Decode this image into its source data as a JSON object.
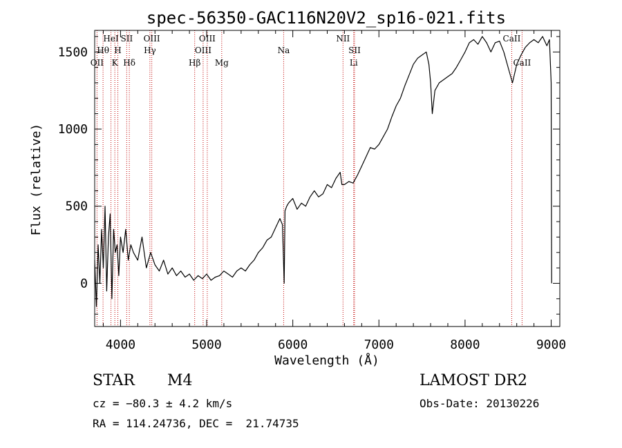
{
  "chart_data": {
    "type": "line",
    "title": "spec-56350-GAC116N20V2_sp16-021.fits",
    "xlabel": "Wavelength (Å)",
    "ylabel": "Flux (relative)",
    "xlim": [
      3700,
      9100
    ],
    "ylim": [
      -280,
      1640
    ],
    "xticks": [
      4000,
      5000,
      6000,
      7000,
      8000,
      9000
    ],
    "yticks": [
      0,
      500,
      1000,
      1500
    ],
    "series": [
      {
        "x": [
          3700,
          3720,
          3740,
          3760,
          3780,
          3800,
          3820,
          3840,
          3860,
          3880,
          3900,
          3920,
          3940,
          3960,
          3980,
          4000,
          4030,
          4060,
          4090,
          4120,
          4150,
          4200,
          4250,
          4300,
          4350,
          4400,
          4450,
          4500,
          4550,
          4600,
          4650,
          4700,
          4750,
          4800,
          4850,
          4900,
          4950,
          5000,
          5050,
          5100,
          5150,
          5200,
          5250,
          5300,
          5350,
          5400,
          5450,
          5500,
          5550,
          5600,
          5650,
          5700,
          5750,
          5800,
          5850,
          5880,
          5900,
          5910,
          5930,
          5950,
          6000,
          6050,
          6100,
          6150,
          6200,
          6250,
          6300,
          6350,
          6400,
          6450,
          6500,
          6550,
          6570,
          6600,
          6650,
          6700,
          6750,
          6800,
          6850,
          6900,
          6950,
          7000,
          7050,
          7100,
          7150,
          7200,
          7250,
          7300,
          7350,
          7400,
          7450,
          7500,
          7550,
          7580,
          7600,
          7620,
          7650,
          7700,
          7750,
          7800,
          7850,
          7900,
          7950,
          8000,
          8050,
          8100,
          8150,
          8200,
          8250,
          8300,
          8350,
          8400,
          8450,
          8500,
          8550,
          8600,
          8650,
          8700,
          8750,
          8800,
          8850,
          8900,
          8950,
          8980,
          9000,
          9005
        ],
        "y": [
          150,
          -150,
          250,
          0,
          350,
          100,
          500,
          -50,
          300,
          450,
          -100,
          350,
          200,
          250,
          50,
          300,
          200,
          350,
          150,
          250,
          200,
          150,
          300,
          100,
          200,
          120,
          80,
          150,
          60,
          100,
          50,
          80,
          40,
          60,
          20,
          50,
          30,
          60,
          20,
          40,
          50,
          80,
          60,
          40,
          80,
          100,
          80,
          120,
          150,
          200,
          230,
          280,
          300,
          360,
          420,
          380,
          0,
          470,
          500,
          520,
          550,
          480,
          520,
          500,
          560,
          600,
          560,
          580,
          640,
          620,
          680,
          720,
          640,
          640,
          660,
          650,
          700,
          760,
          820,
          880,
          870,
          900,
          950,
          1000,
          1080,
          1150,
          1200,
          1280,
          1350,
          1420,
          1460,
          1480,
          1500,
          1420,
          1300,
          1100,
          1250,
          1300,
          1320,
          1340,
          1360,
          1400,
          1450,
          1500,
          1560,
          1580,
          1550,
          1600,
          1560,
          1500,
          1560,
          1570,
          1500,
          1400,
          1300,
          1420,
          1480,
          1530,
          1560,
          1580,
          1560,
          1600,
          1540,
          1580,
          1300,
          0
        ]
      }
    ],
    "lines": [
      {
        "name": "OII",
        "x": 3727,
        "row": 3
      },
      {
        "name": "Hθ",
        "x": 3797,
        "row": 2
      },
      {
        "name": "HeI",
        "x": 3889,
        "row": 1
      },
      {
        "name": "K",
        "x": 3934,
        "row": 3
      },
      {
        "name": "H",
        "x": 3969,
        "row": 2
      },
      {
        "name": "SII",
        "x": 4072,
        "row": 1
      },
      {
        "name": "Hδ",
        "x": 4102,
        "row": 3
      },
      {
        "name": "OIII",
        "x": 4363,
        "row": 1
      },
      {
        "name": "Hγ",
        "x": 4341,
        "row": 2
      },
      {
        "name": "Hβ",
        "x": 4861,
        "row": 3
      },
      {
        "name": "OIII",
        "x": 4959,
        "row": 2
      },
      {
        "name": "OIII",
        "x": 5007,
        "row": 1
      },
      {
        "name": "Mg",
        "x": 5175,
        "row": 3
      },
      {
        "name": "Na",
        "x": 5894,
        "row": 2
      },
      {
        "name": "NII",
        "x": 6583,
        "row": 1
      },
      {
        "name": "SII",
        "x": 6717,
        "row": 2
      },
      {
        "name": "Li",
        "x": 6707,
        "row": 3
      },
      {
        "name": "CaII",
        "x": 8542,
        "row": 1
      },
      {
        "name": "CaII",
        "x": 8662,
        "row": 3
      }
    ],
    "line_color": "#c00000",
    "spectrum_color": "#000000",
    "grid": false
  },
  "info": {
    "class": "STAR",
    "subclass": "M4",
    "survey": "LAMOST DR2",
    "cz": "cz = −80.3 ± 4.2 km/s",
    "obs_date": "Obs-Date: 20130226",
    "coords": "RA = 114.24736, DEC =  21.74735"
  }
}
